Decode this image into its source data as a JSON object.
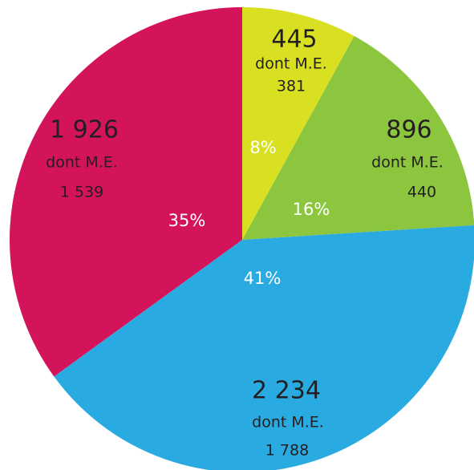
{
  "chart_data": {
    "type": "pie",
    "categories": [
      null,
      null,
      null,
      null
    ],
    "values": [
      8,
      16,
      41,
      35
    ],
    "value_labels": [
      "8%",
      "16%",
      "41%",
      "35%"
    ],
    "colors": [
      "#d9e021",
      "#8cc63f",
      "#29abe2",
      "#d4145a"
    ],
    "counts": [
      445,
      896,
      2234,
      1926
    ],
    "count_labels": [
      "445",
      "896",
      "2 234",
      "1 926"
    ],
    "sub_label": "dont M.E.",
    "sub_counts": [
      381,
      440,
      1788,
      1539
    ],
    "sub_count_labels": [
      "381",
      "440",
      "1 788",
      "1 539"
    ]
  }
}
